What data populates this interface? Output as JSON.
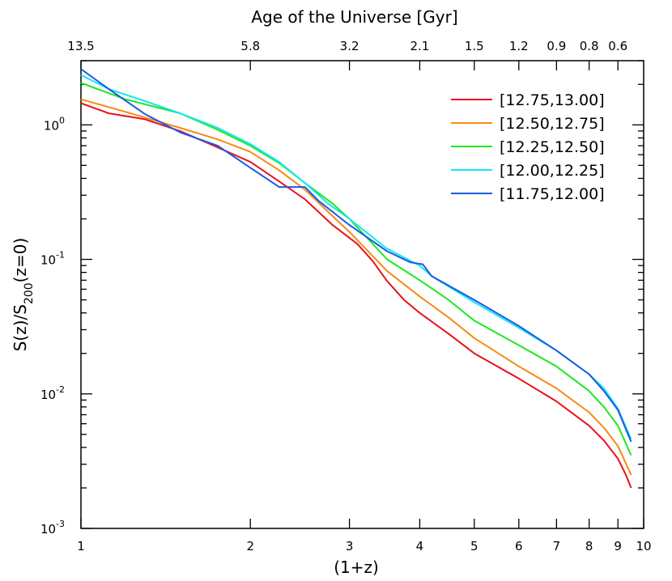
{
  "chart_data": {
    "type": "line",
    "title": "",
    "xlabel": "(1+z)",
    "ylabel": "S(z)/S200(z=0)",
    "ylabel_parts": {
      "pre": "S(z)/S",
      "sub": "200",
      "post": "(z=0)"
    },
    "top_axis_label": "Age of the Universe [Gyr]",
    "x_scale": "log",
    "y_scale": "log",
    "xlim": [
      1,
      10
    ],
    "ylim": [
      0.001,
      3
    ],
    "grid": false,
    "legend_position": "top-right",
    "x_ticks": [
      1,
      2,
      3,
      4,
      5,
      6,
      7,
      8,
      9,
      10
    ],
    "x_tick_labels": [
      "1",
      "2",
      "3",
      "4",
      "5",
      "6",
      "7",
      "8",
      "9",
      "10"
    ],
    "y_ticks": [
      {
        "value": 1,
        "base": "10",
        "exp": "0"
      },
      {
        "value": 0.1,
        "base": "10",
        "exp": "-1"
      },
      {
        "value": 0.01,
        "base": "10",
        "exp": "-2"
      },
      {
        "value": 0.001,
        "base": "10",
        "exp": "-3"
      }
    ],
    "top_ticks": [
      {
        "at": 1.0,
        "label": "13.5"
      },
      {
        "at": 2.0,
        "label": "5.8"
      },
      {
        "at": 3.0,
        "label": "3.2"
      },
      {
        "at": 4.0,
        "label": "2.1"
      },
      {
        "at": 5.0,
        "label": "1.5"
      },
      {
        "at": 6.0,
        "label": "1.2"
      },
      {
        "at": 7.0,
        "label": "0.9"
      },
      {
        "at": 8.0,
        "label": "0.8"
      },
      {
        "at": 9.0,
        "label": "0.6"
      }
    ],
    "series": [
      {
        "name": "[12.75,13.00]",
        "color": "#e8111d",
        "x": [
          1.0,
          1.12,
          1.3,
          1.5,
          1.75,
          2.0,
          2.25,
          2.5,
          2.8,
          3.1,
          3.3,
          3.5,
          3.75,
          4.0,
          4.5,
          5.0,
          6.0,
          7.0,
          8.0,
          8.5,
          9.0,
          9.3,
          9.5
        ],
        "y": [
          1.45,
          1.22,
          1.1,
          0.9,
          0.68,
          0.53,
          0.38,
          0.28,
          0.18,
          0.13,
          0.097,
          0.069,
          0.05,
          0.04,
          0.028,
          0.02,
          0.013,
          0.0088,
          0.0058,
          0.0045,
          0.0033,
          0.0025,
          0.002
        ]
      },
      {
        "name": "[12.50,12.75]",
        "color": "#f58c14",
        "x": [
          1.0,
          1.2,
          1.5,
          1.75,
          2.0,
          2.25,
          2.5,
          2.8,
          3.0,
          3.5,
          4.0,
          4.5,
          5.0,
          6.0,
          7.0,
          8.0,
          8.5,
          9.0,
          9.5
        ],
        "y": [
          1.55,
          1.25,
          0.95,
          0.78,
          0.63,
          0.46,
          0.33,
          0.21,
          0.16,
          0.082,
          0.053,
          0.037,
          0.026,
          0.016,
          0.011,
          0.0073,
          0.0056,
          0.0041,
          0.0025
        ]
      },
      {
        "name": "[12.25,12.50]",
        "color": "#1ee81e",
        "x": [
          1.0,
          1.2,
          1.5,
          1.75,
          2.0,
          2.25,
          2.5,
          2.8,
          3.0,
          3.5,
          4.0,
          4.5,
          5.0,
          6.0,
          7.0,
          8.0,
          8.5,
          9.0,
          9.5
        ],
        "y": [
          2.05,
          1.55,
          1.22,
          0.92,
          0.7,
          0.52,
          0.37,
          0.26,
          0.2,
          0.1,
          0.07,
          0.05,
          0.035,
          0.023,
          0.016,
          0.0105,
          0.008,
          0.0058,
          0.0035
        ]
      },
      {
        "name": "[12.00,12.25]",
        "color": "#14e6f5",
        "x": [
          1.0,
          1.12,
          1.3,
          1.5,
          1.75,
          2.0,
          2.25,
          2.5,
          2.75,
          3.0,
          3.5,
          4.0,
          4.2,
          5.0,
          6.0,
          7.0,
          8.0,
          8.5,
          9.0,
          9.5
        ],
        "y": [
          2.35,
          1.85,
          1.5,
          1.22,
          0.95,
          0.72,
          0.53,
          0.37,
          0.26,
          0.2,
          0.12,
          0.09,
          0.075,
          0.048,
          0.031,
          0.021,
          0.014,
          0.011,
          0.0078,
          0.0046
        ]
      },
      {
        "name": "[11.75,12.00]",
        "color": "#1a5ae6",
        "x": [
          1.0,
          1.12,
          1.3,
          1.5,
          1.75,
          2.0,
          2.25,
          2.5,
          2.65,
          3.0,
          3.5,
          3.85,
          4.05,
          4.2,
          5.0,
          6.0,
          7.0,
          8.0,
          8.5,
          9.0,
          9.5
        ],
        "y": [
          2.6,
          1.85,
          1.2,
          0.88,
          0.7,
          0.48,
          0.345,
          0.345,
          0.27,
          0.18,
          0.115,
          0.095,
          0.092,
          0.075,
          0.05,
          0.032,
          0.021,
          0.014,
          0.0105,
          0.0076,
          0.0044
        ]
      }
    ]
  }
}
